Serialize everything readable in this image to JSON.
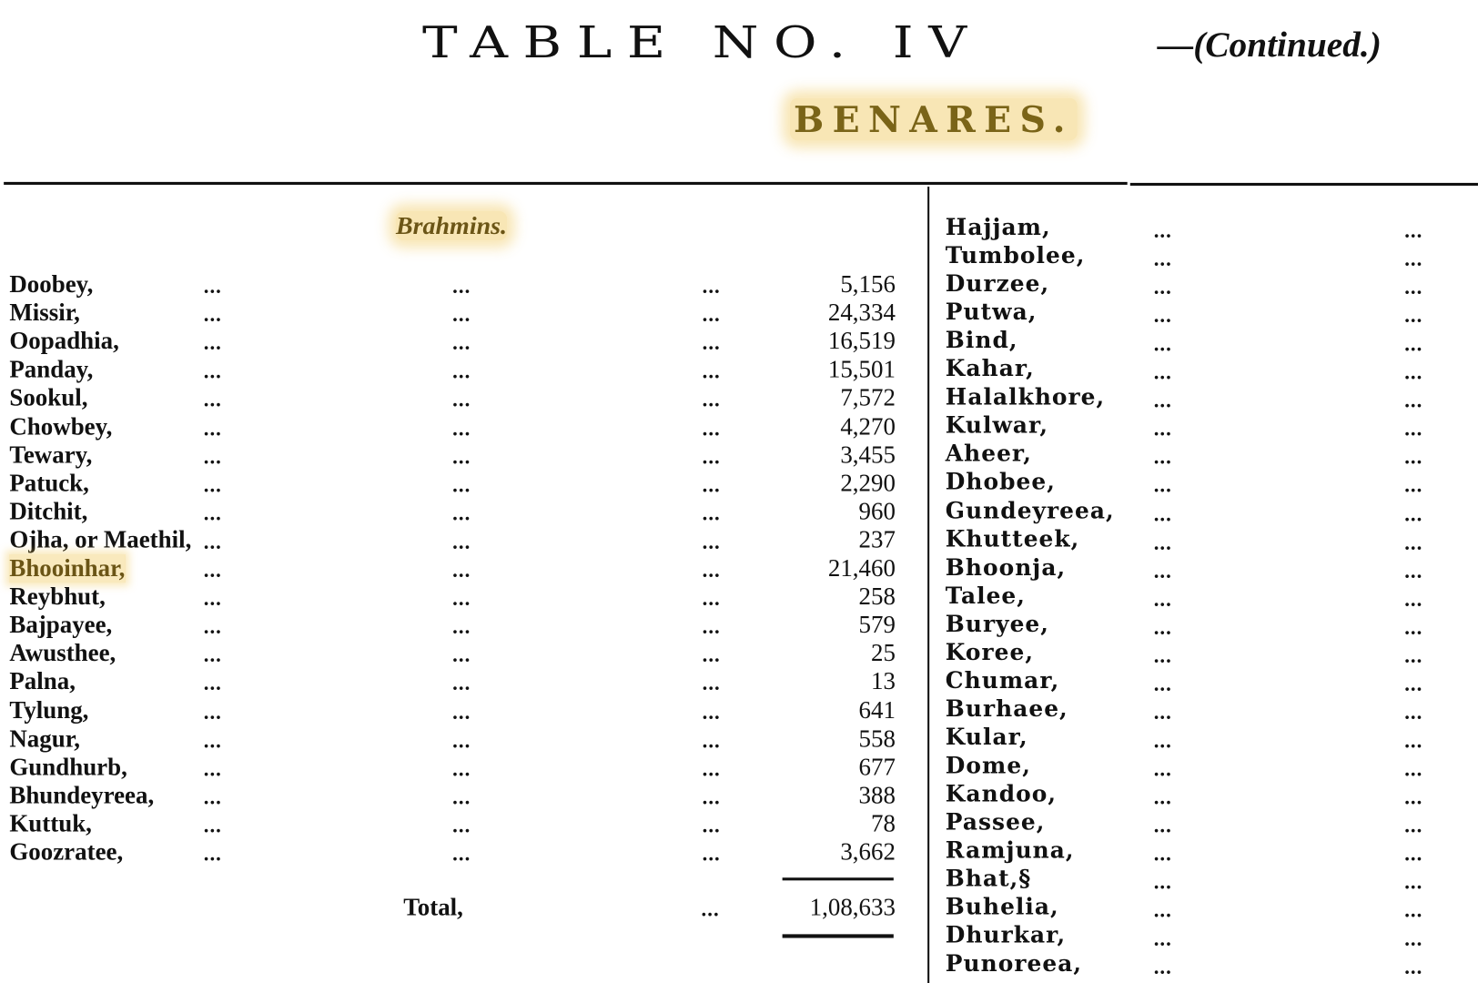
{
  "header": {
    "title": "TABLE NO. IV",
    "continued": "—(Continued.)",
    "district": "BENARES.",
    "highlight_color": "#f0c85a"
  },
  "left_table": {
    "section_label": "Brahmins.",
    "dots": "...",
    "rows": [
      {
        "name": "Doobey,",
        "value": "5,156"
      },
      {
        "name": "Missir,",
        "value": "24,334"
      },
      {
        "name": "Oopadhia,",
        "value": "16,519"
      },
      {
        "name": "Panday,",
        "value": "15,501"
      },
      {
        "name": "Sookul,",
        "value": "7,572"
      },
      {
        "name": "Chowbey,",
        "value": "4,270"
      },
      {
        "name": "Tewary,",
        "value": "3,455"
      },
      {
        "name": "Patuck,",
        "value": "2,290"
      },
      {
        "name": "Ditchit,",
        "value": "960"
      },
      {
        "name": "Ojha, or Maethil,",
        "value": "237"
      },
      {
        "name": "Bhooinhar,",
        "value": "21,460",
        "highlighted": true
      },
      {
        "name": "Reybhut,",
        "value": "258"
      },
      {
        "name": "Bajpayee,",
        "value": "579"
      },
      {
        "name": "Awusthee,",
        "value": "25"
      },
      {
        "name": "Palna,",
        "value": "13"
      },
      {
        "name": "Tylung,",
        "value": "641"
      },
      {
        "name": "Nagur,",
        "value": "558"
      },
      {
        "name": "Gundhurb,",
        "value": "677"
      },
      {
        "name": "Bhundeyreea,",
        "value": "388"
      },
      {
        "name": "Kuttuk,",
        "value": "78"
      },
      {
        "name": "Goozratee,",
        "value": "3,662"
      }
    ],
    "total_label": "Total,",
    "total_value": "1,08,633"
  },
  "right_table": {
    "dots": "...",
    "rows": [
      "Hajjam,",
      "Tumbolee,",
      "Durzee,",
      "Putwa,",
      "Bind,",
      "Kahar,",
      "Halalkhore,",
      "Kulwar,",
      "Aheer,",
      "Dhobee,",
      "Gundeyreea,",
      "Khutteek,",
      "Bhoonja,",
      "Talee,",
      "Buryee,",
      "Koree,",
      "Chumar,",
      "Burhaee,",
      "Kular,",
      "Dome,",
      "Kandoo,",
      "Passee,",
      "Ramjuna,",
      "Bhat,§",
      "Buhelia,",
      "Dhurkar,",
      "Punoreea,"
    ]
  }
}
